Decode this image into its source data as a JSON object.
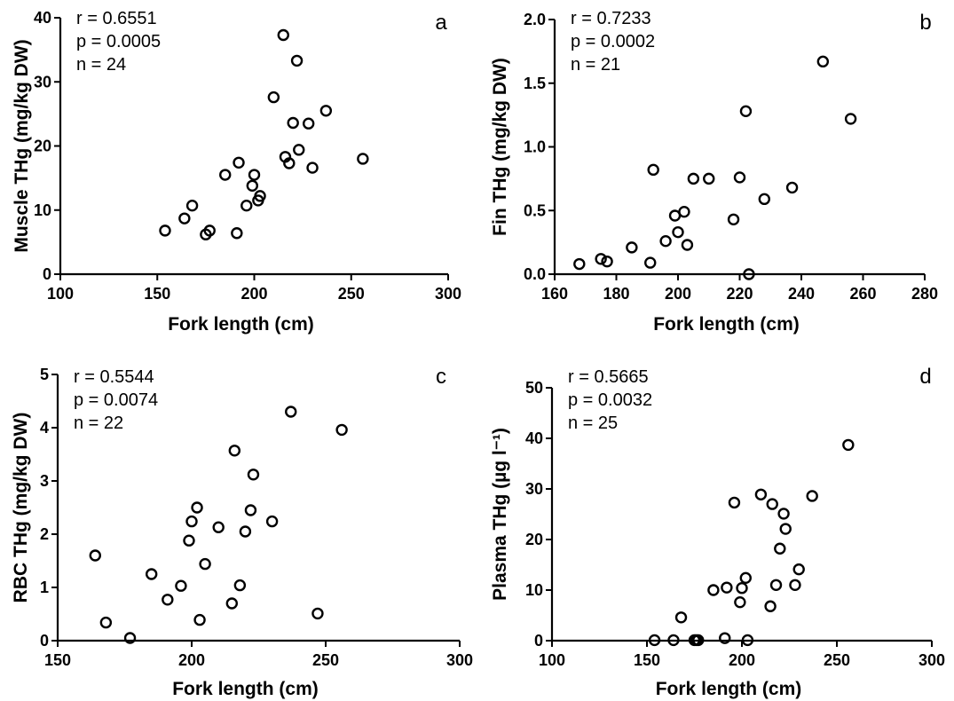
{
  "chart_data": [
    {
      "type": "scatter",
      "panel_label": "a",
      "xlabel": "Fork length (cm)",
      "ylabel": "Muscle THg (mg/kg DW)",
      "xlim": [
        100,
        300
      ],
      "ylim": [
        0,
        40
      ],
      "xticks": [
        100,
        150,
        200,
        250,
        300
      ],
      "yticks": [
        0,
        10,
        20,
        30,
        40
      ],
      "stats": [
        "r = 0.6551",
        "p = 0.0005",
        "n = 24"
      ],
      "points": [
        [
          154,
          6.8
        ],
        [
          164,
          8.7
        ],
        [
          168,
          10.7
        ],
        [
          175,
          6.2
        ],
        [
          177,
          6.8
        ],
        [
          185,
          15.5
        ],
        [
          191,
          6.4
        ],
        [
          192,
          17.4
        ],
        [
          196,
          10.7
        ],
        [
          199,
          13.8
        ],
        [
          200,
          15.5
        ],
        [
          202,
          11.5
        ],
        [
          203,
          12.2
        ],
        [
          210,
          27.6
        ],
        [
          215,
          37.3
        ],
        [
          216,
          18.3
        ],
        [
          218,
          17.3
        ],
        [
          220,
          23.6
        ],
        [
          222,
          33.3
        ],
        [
          223,
          19.4
        ],
        [
          228,
          23.5
        ],
        [
          230,
          16.6
        ],
        [
          237,
          25.5
        ],
        [
          256,
          18.0
        ]
      ]
    },
    {
      "type": "scatter",
      "panel_label": "b",
      "xlabel": "Fork length (cm)",
      "ylabel": "Fin THg (mg/kg DW)",
      "xlim": [
        160,
        280
      ],
      "ylim": [
        0,
        2.0
      ],
      "xticks": [
        160,
        180,
        200,
        220,
        240,
        260,
        280
      ],
      "yticks": [
        0.0,
        0.5,
        1.0,
        1.5,
        2.0
      ],
      "ytick_labels": [
        "0.0",
        "0.5",
        "1.0",
        "1.5",
        "2.0"
      ],
      "stats": [
        "r = 0.7233",
        "p = 0.0002",
        "n = 21"
      ],
      "points": [
        [
          168,
          0.08
        ],
        [
          175,
          0.12
        ],
        [
          177,
          0.1
        ],
        [
          185,
          0.21
        ],
        [
          191,
          0.09
        ],
        [
          192,
          0.82
        ],
        [
          196,
          0.26
        ],
        [
          199,
          0.46
        ],
        [
          200,
          0.33
        ],
        [
          202,
          0.49
        ],
        [
          203,
          0.23
        ],
        [
          205,
          0.75
        ],
        [
          210,
          0.75
        ],
        [
          218,
          0.43
        ],
        [
          220,
          0.76
        ],
        [
          222,
          1.28
        ],
        [
          223,
          0.0
        ],
        [
          228,
          0.59
        ],
        [
          237,
          0.68
        ],
        [
          247,
          1.67
        ],
        [
          256,
          1.22
        ]
      ]
    },
    {
      "type": "scatter",
      "panel_label": "c",
      "xlabel": "Fork length (cm)",
      "ylabel": "RBC THg (mg/kg DW)",
      "xlim": [
        150,
        300
      ],
      "ylim": [
        0,
        5
      ],
      "xticks": [
        150,
        200,
        250,
        300
      ],
      "yticks": [
        0,
        1,
        2,
        3,
        4,
        5
      ],
      "stats": [
        "r = 0.5544",
        "p = 0.0074",
        "n = 22"
      ],
      "points": [
        [
          164,
          1.6
        ],
        [
          168,
          0.34
        ],
        [
          177,
          0.05
        ],
        [
          185,
          1.25
        ],
        [
          191,
          0.77
        ],
        [
          196,
          1.03
        ],
        [
          199,
          1.88
        ],
        [
          200,
          2.24
        ],
        [
          202,
          2.5
        ],
        [
          203,
          0.39
        ],
        [
          205,
          1.44
        ],
        [
          210,
          2.13
        ],
        [
          215,
          0.7
        ],
        [
          216,
          3.57
        ],
        [
          218,
          1.04
        ],
        [
          220,
          2.05
        ],
        [
          222,
          2.45
        ],
        [
          223,
          3.12
        ],
        [
          230,
          2.24
        ],
        [
          237,
          4.3
        ],
        [
          247,
          0.51
        ],
        [
          256,
          3.96
        ]
      ]
    },
    {
      "type": "scatter",
      "panel_label": "d",
      "xlabel": "Fork length (cm)",
      "ylabel": "Plasma THg (µg l⁻¹)",
      "xlim": [
        100,
        300
      ],
      "ylim": [
        0,
        50
      ],
      "xticks": [
        100,
        150,
        200,
        250,
        300
      ],
      "yticks": [
        0,
        10,
        20,
        30,
        40,
        50
      ],
      "stats": [
        "r = 0.5665",
        "p = 0.0032",
        "n = 25"
      ],
      "points": [
        [
          154,
          0.1
        ],
        [
          164,
          0.1
        ],
        [
          168,
          4.6
        ],
        [
          175,
          0.1
        ],
        [
          176,
          0.1
        ],
        [
          177,
          0.1
        ],
        [
          185,
          10.0
        ],
        [
          191,
          0.5
        ],
        [
          192,
          10.5
        ],
        [
          196,
          27.3
        ],
        [
          199,
          7.6
        ],
        [
          200,
          10.4
        ],
        [
          202,
          12.4
        ],
        [
          203,
          0.1
        ],
        [
          210,
          28.9
        ],
        [
          215,
          6.8
        ],
        [
          216,
          27.0
        ],
        [
          218,
          11.0
        ],
        [
          220,
          18.2
        ],
        [
          222,
          25.1
        ],
        [
          223,
          22.1
        ],
        [
          228,
          11.0
        ],
        [
          230,
          14.1
        ],
        [
          237,
          28.6
        ],
        [
          256,
          38.7
        ]
      ]
    }
  ]
}
